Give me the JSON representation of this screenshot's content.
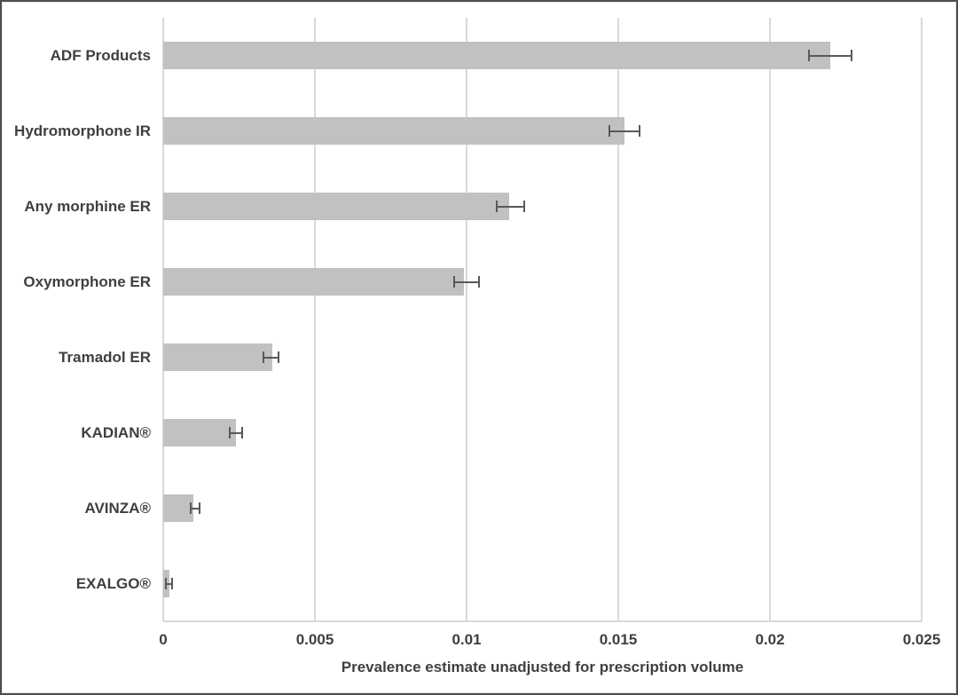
{
  "chart_data": {
    "type": "bar",
    "orientation": "horizontal",
    "title": "",
    "xlabel": "Prevalence estimate unadjusted for prescription volume",
    "ylabel": "",
    "categories": [
      "ADF Products",
      "Hydromorphone IR",
      "Any morphine ER",
      "Oxymorphone ER",
      "Tramadol ER",
      "KADIAN®",
      "AVINZA®",
      "EXALGO®"
    ],
    "values": [
      0.022,
      0.0152,
      0.0114,
      0.0099,
      0.0036,
      0.0024,
      0.001,
      0.0002
    ],
    "error_low": [
      0.0213,
      0.0147,
      0.011,
      0.0096,
      0.0033,
      0.0022,
      0.0009,
      0.0001
    ],
    "error_high": [
      0.0227,
      0.0157,
      0.0119,
      0.0104,
      0.0038,
      0.0026,
      0.0012,
      0.0003
    ],
    "xlim": [
      0,
      0.025
    ],
    "xticks": [
      0,
      0.005,
      0.01,
      0.015,
      0.02,
      0.025
    ],
    "xticklabels": [
      "0",
      "0.005",
      "0.01",
      "0.015",
      "0.02",
      "0.025"
    ],
    "grid": true,
    "legend": false,
    "colors": {
      "bar_fill": "#c1c1c1",
      "error_bar": "#595959",
      "gridline": "#d9d9d9",
      "text": "#3f3f3f",
      "frame_border": "#4d4d4d"
    }
  }
}
